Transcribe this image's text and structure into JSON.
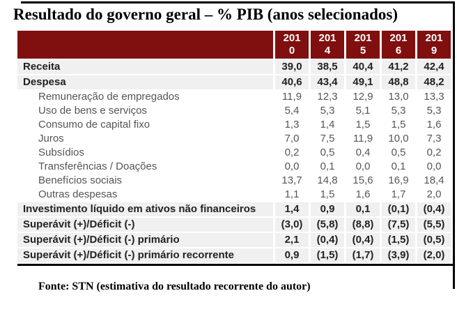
{
  "chart_data": {
    "type": "table",
    "title": "Resultado do governo geral – % PIB (anos selecionados)",
    "unit": "% PIB",
    "columns": [
      "2010",
      "2014",
      "2015",
      "2016",
      "2019"
    ],
    "rows": [
      {
        "label": "Receita",
        "values": [
          "39,0",
          "38,5",
          "40,4",
          "41,2",
          "42,4"
        ],
        "emphasis": true,
        "indent": false
      },
      {
        "label": "Despesa",
        "values": [
          "40,6",
          "43,4",
          "49,1",
          "48,8",
          "48,2"
        ],
        "emphasis": true,
        "indent": false
      },
      {
        "label": "Remuneração de empregados",
        "values": [
          "11,9",
          "12,3",
          "12,9",
          "13,0",
          "13,3"
        ],
        "emphasis": false,
        "indent": true
      },
      {
        "label": "Uso de bens e serviços",
        "values": [
          "5,4",
          "5,3",
          "5,1",
          "5,3",
          "5,3"
        ],
        "emphasis": false,
        "indent": true
      },
      {
        "label": "Consumo de capital fixo",
        "values": [
          "1,3",
          "1,4",
          "1,5",
          "1,5",
          "1,6"
        ],
        "emphasis": false,
        "indent": true
      },
      {
        "label": "Juros",
        "values": [
          "7,0",
          "7,5",
          "11,9",
          "10,0",
          "7,3"
        ],
        "emphasis": false,
        "indent": true
      },
      {
        "label": "Subsídios",
        "values": [
          "0,2",
          "0,5",
          "0,4",
          "0,5",
          "0,2"
        ],
        "emphasis": false,
        "indent": true
      },
      {
        "label": "Transferências / Doações",
        "values": [
          "0,0",
          "0,1",
          "0,0",
          "0,1",
          "0,0"
        ],
        "emphasis": false,
        "indent": true
      },
      {
        "label": "Benefícios sociais",
        "values": [
          "13,7",
          "14,8",
          "15,6",
          "16,9",
          "18,4"
        ],
        "emphasis": false,
        "indent": true
      },
      {
        "label": "Outras despesas",
        "values": [
          "1,1",
          "1,5",
          "1,6",
          "1,7",
          "2,0"
        ],
        "emphasis": false,
        "indent": true
      },
      {
        "label": "Investimento líquido em ativos não financeiros",
        "values": [
          "1,4",
          "0,9",
          "0,1",
          "(0,1)",
          "(0,4)"
        ],
        "emphasis": true,
        "indent": false
      },
      {
        "label": "Superávit (+)/Déficit (-)",
        "values": [
          "(3,0)",
          "(5,8)",
          "(8,8)",
          "(7,5)",
          "(5,5)"
        ],
        "emphasis": true,
        "indent": false
      },
      {
        "label": "Superávit (+)/Déficit (-) primário",
        "values": [
          "2,1",
          "(0,4)",
          "(0,4)",
          "(1,5)",
          "(0,5)"
        ],
        "emphasis": true,
        "indent": false
      },
      {
        "label": "Superávit (+)/Déficit (-) primário recorrente",
        "values": [
          "0,9",
          "(1,5)",
          "(1,7)",
          "(3,9)",
          "(2,0)"
        ],
        "emphasis": true,
        "indent": false
      }
    ],
    "source": "Fonte: STN (estimativa do resultado recorrente do autor)",
    "legend_position": "none",
    "grid": "white-separators"
  },
  "colors": {
    "header_bg": "#800f0f",
    "header_text": "#ffffff",
    "band_bg": "#f0f0f0",
    "body_text": "#555555",
    "emphasis_text": "#222222",
    "frame": "#000000"
  }
}
